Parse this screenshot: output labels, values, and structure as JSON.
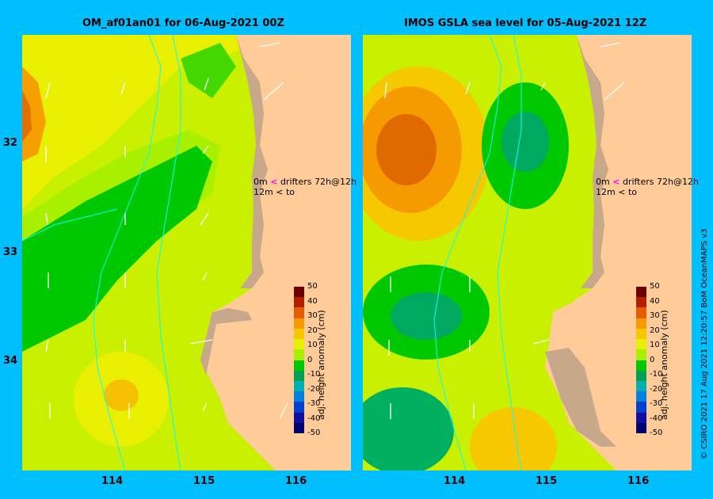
{
  "titles": {
    "left": "OM_af01an01 for 06-Aug-2021 00Z",
    "right": "IMOS GSLA sea level  for 05-Aug-2021 12Z"
  },
  "axes": {
    "lat_ticks": [
      "32",
      "33",
      "34"
    ],
    "lon_ticks": [
      "114",
      "115",
      "116"
    ]
  },
  "drifter_legend": {
    "line1_depth": "0m",
    "line1_symbol": "<",
    "line1_text": "drifters 72h@12h",
    "line2_depth": "12m",
    "line2_symbol": "<",
    "line2_text": "to"
  },
  "colorbar": {
    "title": "adj. height anomaly (cm)",
    "ticks": [
      "50",
      "40",
      "30",
      "20",
      "10",
      "0",
      "-10",
      "-20",
      "-30",
      "-40",
      "-50"
    ],
    "colors": [
      "#6b0000",
      "#b32000",
      "#e65c00",
      "#f59a00",
      "#f5c800",
      "#e8ef00",
      "#a8f000",
      "#00c800",
      "#00a050",
      "#00b0b0",
      "#0080e0",
      "#0040d0",
      "#1010a0",
      "#000070"
    ]
  },
  "colors": {
    "land": "#FFCC99",
    "coast": "#C8A88A",
    "frame": "#00BFFF",
    "contour": "#00FFFF"
  },
  "credit": "© CSIRO 2021   17 Aug 2021 12:20:57 BoM OceanMAPS v3"
}
